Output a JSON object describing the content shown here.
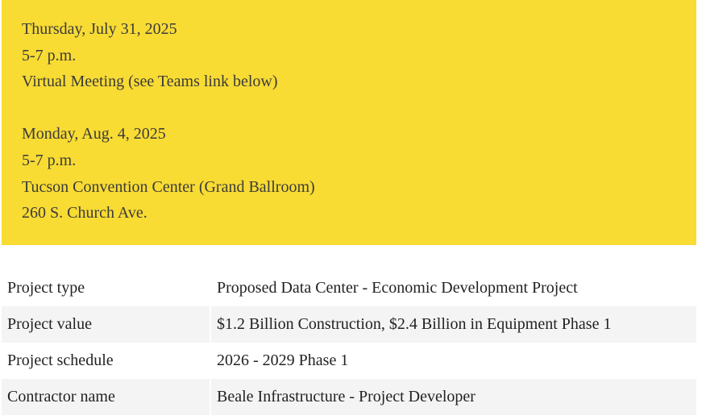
{
  "meetings": [
    {
      "lines": [
        "Thursday, July 31, 2025",
        "5-7 p.m.",
        "Virtual Meeting (see Teams link below)"
      ]
    },
    {
      "lines": [
        "Monday, Aug. 4, 2025",
        "5-7 p.m.",
        "Tucson Convention Center (Grand Ballroom)",
        "260 S. Church Ave."
      ]
    }
  ],
  "project_table": {
    "rows": [
      {
        "label": "Project type",
        "value": "Proposed Data Center - Economic Development Project"
      },
      {
        "label": "Project value",
        "value": "$1.2 Billion Construction, $2.4 Billion in Equipment Phase 1"
      },
      {
        "label": "Project schedule",
        "value": "2026 - 2029 Phase 1"
      },
      {
        "label": "Contractor name",
        "value": "Beale Infrastructure - Project Developer"
      }
    ]
  },
  "colors": {
    "notice_background": "#f8db33",
    "alt_row_background": "#f4f4f4"
  }
}
